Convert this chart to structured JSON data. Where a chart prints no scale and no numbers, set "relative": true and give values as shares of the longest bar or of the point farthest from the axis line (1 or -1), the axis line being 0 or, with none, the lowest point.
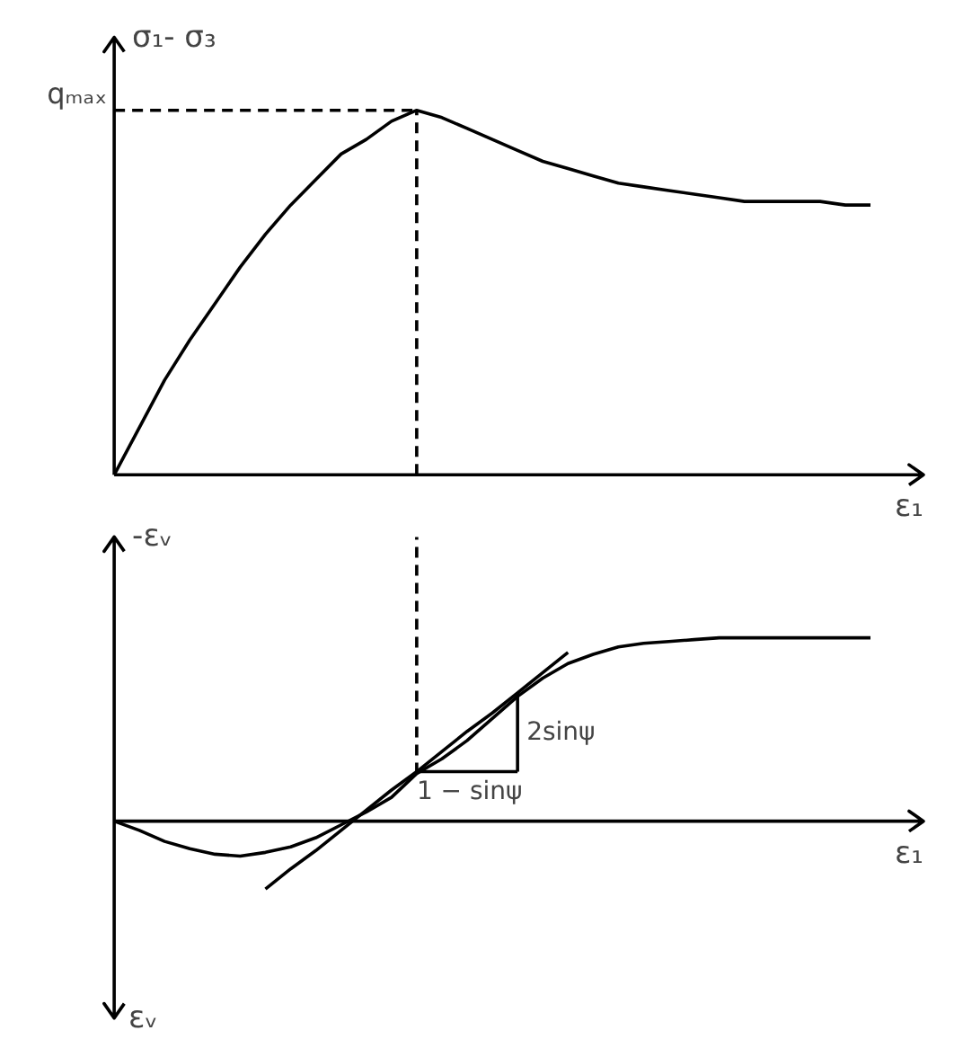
{
  "chart_data": [
    {
      "type": "line",
      "relative": true,
      "ylabel": "σ₁- σ₃",
      "xlabel": "ε₁",
      "categories": [
        null,
        null,
        null,
        null,
        null,
        null,
        null,
        null,
        null,
        null,
        null,
        null,
        null,
        null,
        null,
        null,
        null,
        null,
        null,
        null,
        null,
        null,
        null,
        null,
        null,
        null,
        null,
        null,
        null,
        null,
        null
      ],
      "series": [
        {
          "color": "#000000",
          "line_style": "solid",
          "values": [
            0,
            0.13,
            0.26,
            0.37,
            0.47,
            0.57,
            0.66,
            0.74,
            0.81,
            0.88,
            0.92,
            0.97,
            1,
            0.98,
            0.95,
            0.92,
            0.89,
            0.86,
            0.84,
            0.82,
            0.8,
            0.79,
            0.78,
            0.77,
            0.76,
            0.75,
            0.75,
            0.75,
            0.75,
            0.74,
            0.74
          ]
        },
        {
          "name": "qₘₐₓ",
          "color": "#000000",
          "line_style": "dashed",
          "values": [
            1,
            1,
            1,
            1,
            1,
            1,
            1,
            1,
            1,
            1,
            1,
            1,
            1,
            null,
            null,
            null,
            null,
            null,
            null,
            null,
            null,
            null,
            null,
            null,
            null,
            null,
            null,
            null,
            null,
            null,
            null
          ]
        }
      ]
    },
    {
      "type": "line",
      "relative": true,
      "ylabel": "-εᵥ",
      "xlabel": "ε₁",
      "annotations": [
        "εᵥ",
        "2sinψ"
      ],
      "categories": [
        null,
        null,
        null,
        null,
        null,
        null,
        null,
        null,
        null,
        null,
        null,
        null,
        null,
        null,
        null,
        null,
        null,
        null,
        null,
        null,
        null,
        null,
        null,
        null,
        null,
        null,
        null,
        null,
        null,
        null,
        null
      ],
      "series": [
        {
          "color": "#000000",
          "line_style": "solid",
          "values": [
            0,
            -0.05,
            -0.11,
            -0.15,
            -0.18,
            -0.19,
            -0.17,
            -0.14,
            -0.09,
            -0.02,
            0.05,
            0.13,
            0.26,
            0.34,
            0.44,
            0.56,
            0.68,
            0.78,
            0.86,
            0.91,
            0.95,
            0.97,
            0.98,
            0.99,
            1,
            1,
            1,
            1,
            1,
            1,
            1
          ]
        },
        {
          "color": "#000000",
          "line_style": "solid",
          "values": [
            null,
            null,
            null,
            null,
            null,
            null,
            -0.37,
            -0.26,
            -0.16,
            -0.05,
            0.06,
            0.17,
            0.27,
            0.38,
            0.49,
            0.59,
            0.7,
            0.81,
            0.92,
            null,
            null,
            null,
            null,
            null,
            null,
            null,
            null,
            null,
            null,
            null,
            null
          ]
        },
        {
          "name": "1 − sinψ",
          "color": "#000000",
          "line_style": "solid",
          "values": [
            null,
            null,
            null,
            null,
            null,
            null,
            null,
            null,
            null,
            null,
            null,
            null,
            0.27,
            0.27,
            0.27,
            0.27,
            0.27,
            null,
            null,
            null,
            null,
            null,
            null,
            null,
            null,
            null,
            null,
            null,
            null,
            null,
            null
          ]
        }
      ]
    }
  ]
}
